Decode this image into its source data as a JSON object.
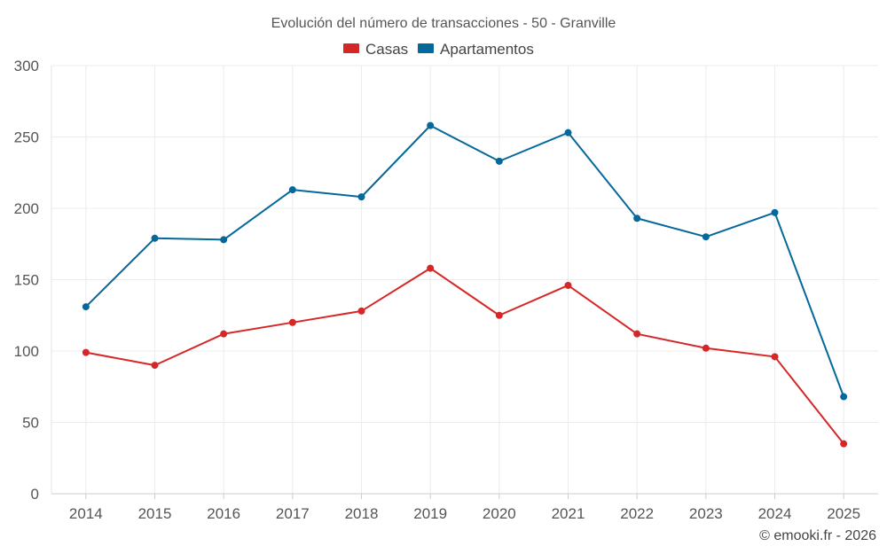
{
  "chart_data": {
    "type": "line",
    "title": "Evolución del número de transacciones - 50 - Granville",
    "xlabel": "",
    "ylabel": "",
    "categories": [
      "2014",
      "2015",
      "2016",
      "2017",
      "2018",
      "2019",
      "2020",
      "2021",
      "2022",
      "2023",
      "2024",
      "2025"
    ],
    "ylim": [
      0,
      300
    ],
    "yticks": [
      0,
      50,
      100,
      150,
      200,
      250,
      300
    ],
    "grid": true,
    "legend_position": "top-center",
    "series": [
      {
        "name": "Casas",
        "color": "#d62728",
        "values": [
          99,
          90,
          112,
          120,
          128,
          158,
          125,
          146,
          112,
          102,
          96,
          35
        ]
      },
      {
        "name": "Apartamentos",
        "color": "#05689b",
        "values": [
          131,
          179,
          178,
          213,
          208,
          258,
          233,
          253,
          193,
          180,
          197,
          68
        ]
      }
    ],
    "credit": "© emooki.fr - 2026"
  }
}
